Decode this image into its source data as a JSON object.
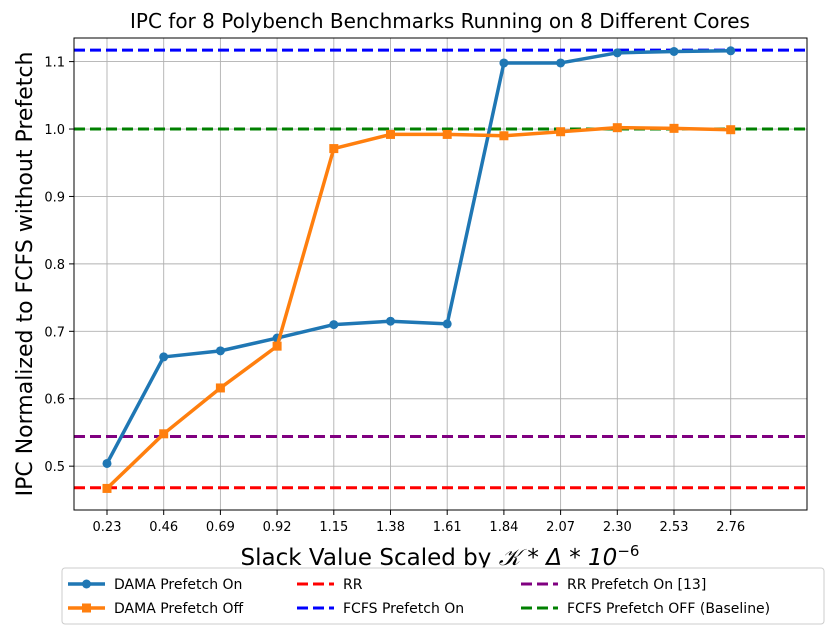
{
  "chart_data": {
    "type": "line",
    "title": "IPC for 8 Polybench Benchmarks Running on 8 Different Cores",
    "xlabel_main": "Slack Value Scaled by ",
    "xlabel_math": "𝒦 * Δ * 10",
    "xlabel_exponent": "−6",
    "ylabel": "IPC Normalized to FCFS without Prefetch",
    "categories": [
      "0.23",
      "0.46",
      "0.69",
      "0.92",
      "1.15",
      "1.38",
      "1.61",
      "1.84",
      "2.07",
      "2.30",
      "2.53",
      "2.76"
    ],
    "ylim": [
      0.435,
      1.135
    ],
    "yticks": [
      "0.5",
      "0.6",
      "0.7",
      "0.8",
      "0.9",
      "1.0",
      "1.1"
    ],
    "grid": true,
    "legend_position": "bottom",
    "series": [
      {
        "name": "DAMA Prefetch On",
        "color": "#1f77b4",
        "marker": "circle",
        "values": [
          0.504,
          0.662,
          0.671,
          0.69,
          0.71,
          0.715,
          0.711,
          1.098,
          1.098,
          1.113,
          1.115,
          1.116
        ]
      },
      {
        "name": "DAMA Prefetch Off",
        "color": "#ff7f0e",
        "marker": "square",
        "values": [
          0.467,
          0.548,
          0.616,
          0.678,
          0.971,
          0.992,
          0.992,
          0.99,
          0.996,
          1.002,
          1.001,
          0.999
        ]
      }
    ],
    "reference_lines": [
      {
        "name": "RR",
        "color": "#ff0000",
        "value": 0.468
      },
      {
        "name": "FCFS Prefetch On",
        "color": "#0000ff",
        "value": 1.117
      },
      {
        "name": "RR Prefetch On [13]",
        "color": "#800080",
        "value": 0.544
      },
      {
        "name": "FCFS Prefetch OFF (Baseline)",
        "color": "#008000",
        "value": 1.0
      }
    ],
    "legend_order": [
      {
        "kind": "series",
        "index": 0
      },
      {
        "kind": "series",
        "index": 1
      },
      {
        "kind": "ref",
        "index": 0
      },
      {
        "kind": "ref",
        "index": 1
      },
      {
        "kind": "ref",
        "index": 2
      },
      {
        "kind": "ref",
        "index": 3
      }
    ]
  }
}
